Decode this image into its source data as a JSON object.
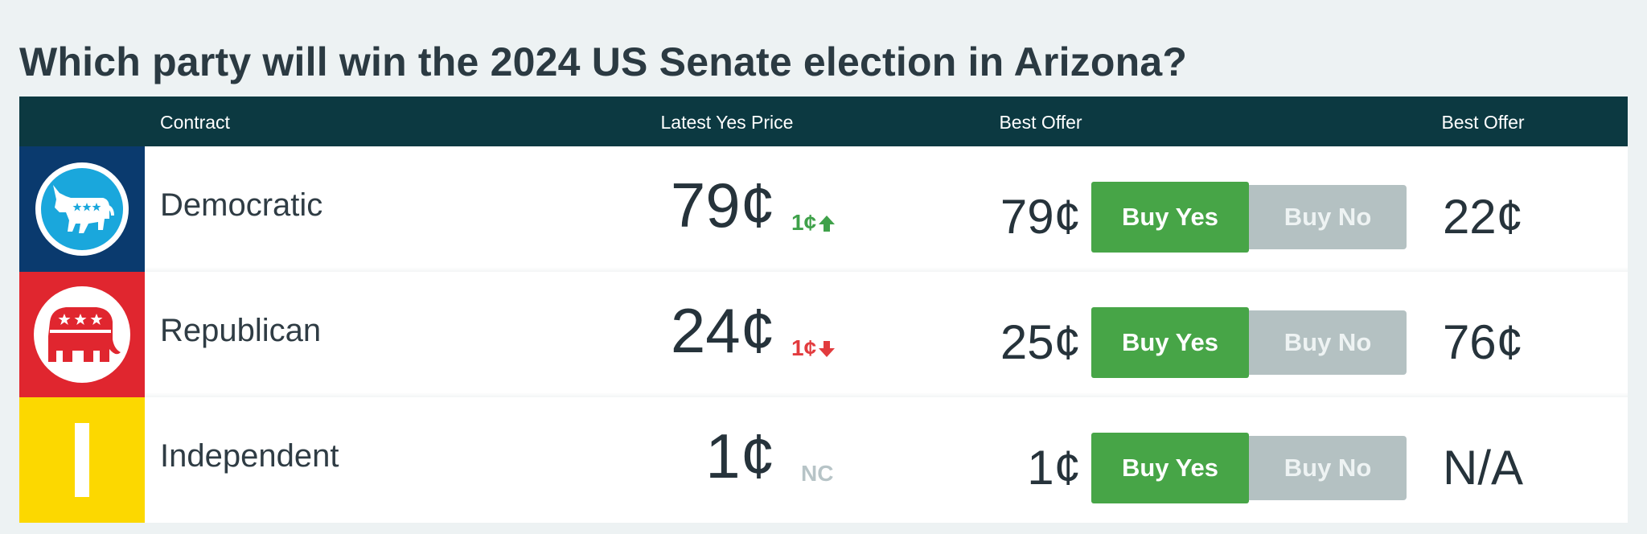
{
  "page": {
    "title": "Which party will win the 2024 US Senate election in Arizona?"
  },
  "table": {
    "headers": {
      "contract": "Contract",
      "latest_yes_price": "Latest Yes Price",
      "best_offer_yes": "Best Offer",
      "best_offer_no": "Best Offer"
    },
    "rows": [
      {
        "contract": "Democratic",
        "logo": "democratic-donkey-icon",
        "logo_bg": "#0a3a6e",
        "latest_price": "79¢",
        "change": "1¢",
        "change_direction": "up",
        "best_offer_yes": "79¢",
        "buy_yes": "Buy Yes",
        "buy_no": "Buy No",
        "best_offer_no": "22¢"
      },
      {
        "contract": "Republican",
        "logo": "republican-elephant-icon",
        "logo_bg": "#e0262f",
        "latest_price": "24¢",
        "change": "1¢",
        "change_direction": "down",
        "best_offer_yes": "25¢",
        "buy_yes": "Buy Yes",
        "buy_no": "Buy No",
        "best_offer_no": "76¢"
      },
      {
        "contract": "Independent",
        "logo": "independent-bar-icon",
        "logo_bg": "#fcd800",
        "latest_price": "1¢",
        "change": "NC",
        "change_direction": "none",
        "best_offer_yes": "1¢",
        "buy_yes": "Buy Yes",
        "buy_no": "Buy No",
        "best_offer_no": "N/A"
      }
    ]
  },
  "colors": {
    "header_bg": "#0c3941",
    "buy_yes": "#47a547",
    "buy_no": "#b4c1c2",
    "change_up": "#3fa14a",
    "change_down": "#e23b3e"
  }
}
